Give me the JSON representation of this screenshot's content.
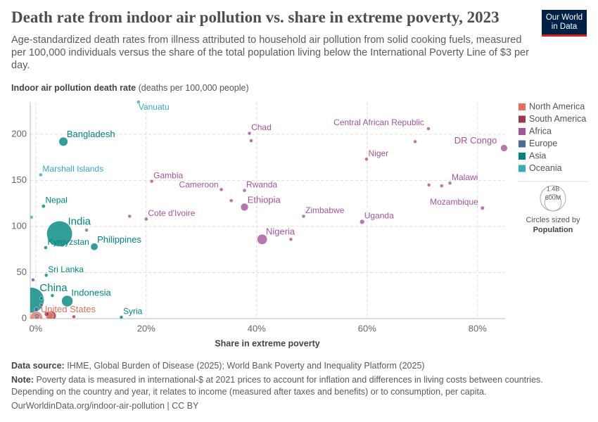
{
  "chart_data": {
    "type": "scatter",
    "title": "Death rate from indoor air pollution vs. share in extreme poverty, 2023",
    "subtitle": "Age-standardized death rates from illness attributed to household air pollution from solid cooking fuels, measured per 100,000 individuals versus the share of the total population living below the International Poverty Line of $3 per day.",
    "y_label": "Indoor air pollution death rate",
    "y_label_unit": "(deaths per 100,000 people)",
    "x_label": "Share in extreme poverty",
    "xlim": [
      -1,
      85
    ],
    "ylim": [
      0,
      235
    ],
    "xticks": [
      {
        "value": 0,
        "label": "0%"
      },
      {
        "value": 20,
        "label": "20%"
      },
      {
        "value": 40,
        "label": "40%"
      },
      {
        "value": 60,
        "label": "60%"
      },
      {
        "value": 80,
        "label": "80%"
      }
    ],
    "yticks": [
      0,
      50,
      100,
      150,
      200
    ],
    "grid": true,
    "legend_position": "right",
    "size_legend_title": "Circles sized by",
    "size_legend_variable": "Population",
    "size_legend": [
      {
        "value": 1400000000,
        "label": "1.4B"
      },
      {
        "value": 600000000,
        "label": "600M"
      }
    ],
    "series": [
      {
        "name": "North America",
        "color": "#e56e5a",
        "labels": [
          "United States",
          null,
          null
        ],
        "x": [
          0.1,
          2.5,
          0.2
        ],
        "values": [
          1,
          3,
          1
        ],
        "sizes": [
          335000000,
          128000000,
          39000000
        ]
      },
      {
        "name": "South America",
        "color": "#9a3a4a",
        "labels": [
          null,
          null,
          null
        ],
        "x": [
          2.8,
          6.9,
          2.0
        ],
        "values": [
          3,
          2,
          5
        ],
        "sizes": [
          216000000,
          12000000,
          52000000
        ]
      },
      {
        "name": "Africa",
        "color": "#a2559c",
        "labels": [
          "Chad",
          "Central African Republic",
          "DR Congo",
          "Niger",
          "Gambia",
          "Malawi",
          "Mozambique",
          "Rwanda",
          "Cameroon",
          "Ethiopia",
          "Cote d'Ivoire",
          "Zimbabwe",
          "Uganda",
          "Nigeria",
          null,
          null,
          null,
          null,
          null,
          null,
          null,
          null
        ],
        "x": [
          38.7,
          71.1,
          84.8,
          59.9,
          21.0,
          75.0,
          80.9,
          37.8,
          33.6,
          37.8,
          20.0,
          48.5,
          59.1,
          41.0,
          39.0,
          68.7,
          71.2,
          73.5,
          35.4,
          17.0,
          9.2,
          46.2
        ],
        "values": [
          201,
          206,
          185,
          173,
          149,
          147,
          120,
          139,
          140,
          121,
          108,
          111,
          105,
          86,
          193,
          192,
          145,
          144,
          128,
          111,
          96,
          86
        ],
        "sizes": [
          18000000,
          5700000,
          102000000,
          27000000,
          2700000,
          21000000,
          33000000,
          14000000,
          28000000,
          126000000,
          29000000,
          16000000,
          48000000,
          224000000,
          3000000,
          14000000,
          4000000,
          6000000,
          9000000,
          5000000,
          2000000,
          13000000
        ]
      },
      {
        "name": "Europe",
        "color": "#4c6a9c",
        "labels": [
          null,
          null,
          null,
          null
        ],
        "x": [
          0.2,
          0.1,
          1.0,
          -0.5
        ],
        "values": [
          2,
          10,
          15,
          42
        ],
        "sizes": [
          83000000,
          45000000,
          19000000,
          3000000
        ]
      },
      {
        "name": "Asia",
        "color": "#00847e",
        "labels": [
          "Bangladesh",
          "Nepal",
          "India",
          "Kyrgyzstan",
          "Philippines",
          "Sri Lanka",
          "China",
          "Indonesia",
          "Syria",
          null,
          null
        ],
        "x": [
          5.0,
          1.4,
          4.3,
          1.8,
          10.6,
          1.9,
          -0.8,
          5.7,
          15.5,
          1.0,
          3.0
        ],
        "values": [
          192,
          122,
          92,
          77,
          78,
          47,
          20,
          19,
          1.5,
          22,
          25
        ],
        "sizes": [
          173000000,
          31000000,
          1430000000,
          7000000,
          115000000,
          22000000,
          1410000000,
          278000000,
          23000000,
          10000000,
          25000000
        ]
      },
      {
        "name": "Oceania",
        "color": "#38aaba",
        "labels": [
          "Vanuatu",
          "Marshall Islands",
          null
        ],
        "x": [
          18.6,
          0.9,
          -0.8
        ],
        "values": [
          235,
          156,
          110
        ],
        "sizes": [
          330000,
          40000,
          700000
        ]
      }
    ]
  },
  "logo": "Our World in Data",
  "footer": {
    "source_label": "Data source:",
    "source": "IHME, Global Burden of Disease (2025); World Bank Poverty and Inequality Platform (2025)",
    "note_label": "Note:",
    "note": "Poverty data is measured in international-$ at 2021 prices to account for inflation and differences in living costs between countries. Depending on the country and year, it relates to income (measured after taxes and benefits) or to consumption, per capita.",
    "url": "OurWorldinData.org/indoor-air-pollution | CC BY"
  }
}
